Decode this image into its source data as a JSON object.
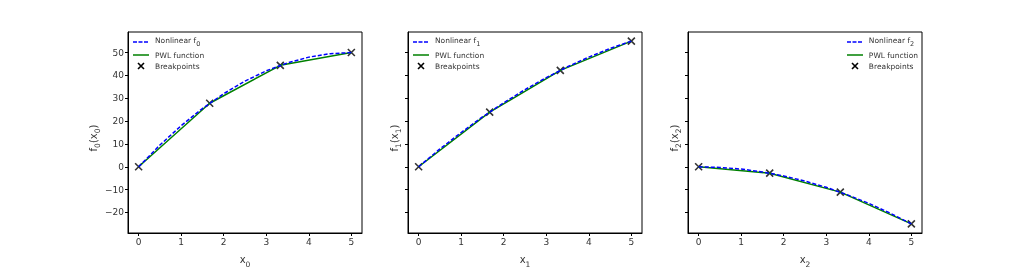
{
  "chart_data": [
    {
      "type": "line",
      "xlabel": "x$_{0}$",
      "ylabel": "f$_{0}$(x$_{0}$)",
      "xlim": [
        -0.25,
        5.25
      ],
      "xticks": [
        0,
        1,
        2,
        3,
        4,
        5
      ],
      "ylim": [
        -29,
        59
      ],
      "yticks": [
        -20,
        -10,
        0,
        10,
        20,
        30,
        40,
        50
      ],
      "grid": false,
      "legend": "top left",
      "series": [
        {
          "name": "Nonlinear f$_{0}$",
          "color": "#0000ff",
          "line_style": "dashed",
          "marker": "none",
          "x": [
            0,
            0.5,
            1,
            1.5,
            2,
            2.5,
            3,
            3.5,
            4,
            4.5,
            5
          ],
          "values": [
            0,
            9.5,
            18,
            25.5,
            32,
            37.5,
            42,
            45.5,
            48,
            49.5,
            50
          ]
        },
        {
          "name": "PWL function",
          "color": "#008000",
          "line_style": "solid",
          "marker": "none",
          "x": [
            0,
            1.67,
            3.33,
            5
          ],
          "values": [
            0,
            27.8,
            44.4,
            50
          ]
        },
        {
          "name": "Breakpoints",
          "type": "scatter",
          "color": "#000000",
          "marker": "cross",
          "x": [
            0,
            1.67,
            3.33,
            5
          ],
          "values": [
            0,
            27.8,
            44.4,
            50
          ]
        }
      ]
    },
    {
      "type": "line",
      "xlabel": "x$_{1}$",
      "ylabel": "f$_{1}$(x$_{1}$)",
      "xlim": [
        -0.25,
        5.25
      ],
      "xticks": [
        0,
        1,
        2,
        3,
        4,
        5
      ],
      "ylim": [
        -29,
        59
      ],
      "yticks": [
        -20,
        -10,
        0,
        10,
        20,
        30,
        40,
        50
      ],
      "tick_labels": "x",
      "grid": false,
      "legend": "top left",
      "series": [
        {
          "name": "Nonlinear f$_{1}$",
          "color": "#0000ff",
          "line_style": "dashed",
          "marker": "none",
          "x": [
            0,
            0.5,
            1,
            1.5,
            2,
            2.5,
            3,
            3.5,
            4,
            4.5,
            5
          ],
          "values": [
            0,
            7.8,
            15,
            21.8,
            28,
            33.8,
            39,
            43.8,
            48,
            51.8,
            55
          ]
        },
        {
          "name": "PWL function",
          "color": "#008000",
          "line_style": "solid",
          "marker": "none",
          "x": [
            0,
            1.67,
            3.33,
            5
          ],
          "values": [
            0,
            23.9,
            42.2,
            55
          ]
        },
        {
          "name": "Breakpoints",
          "type": "scatter",
          "color": "#000000",
          "marker": "cross",
          "x": [
            0,
            1.67,
            3.33,
            5
          ],
          "values": [
            0,
            23.9,
            42.2,
            55
          ]
        }
      ]
    },
    {
      "type": "line",
      "xlabel": "x$_{2}$",
      "ylabel": "f$_{2}$(x$_{2}$)",
      "xlim": [
        -0.25,
        5.25
      ],
      "xticks": [
        0,
        1,
        2,
        3,
        4,
        5
      ],
      "ylim": [
        -29,
        59
      ],
      "yticks": [
        -20,
        -10,
        0,
        10,
        20,
        30,
        40,
        50
      ],
      "tick_labels": "x",
      "grid": false,
      "legend": "top right",
      "series": [
        {
          "name": "Nonlinear f$_{2}$",
          "color": "#0000ff",
          "line_style": "dashed",
          "marker": "none",
          "x": [
            0,
            0.5,
            1,
            1.5,
            2,
            2.5,
            3,
            3.5,
            4,
            4.5,
            5
          ],
          "values": [
            0,
            -0.3,
            -1,
            -2.3,
            -4,
            -6.3,
            -9,
            -12.3,
            -16,
            -20.3,
            -25
          ]
        },
        {
          "name": "PWL function",
          "color": "#008000",
          "line_style": "solid",
          "marker": "none",
          "x": [
            0,
            1.67,
            3.33,
            5
          ],
          "values": [
            0,
            -2.8,
            -11.1,
            -25
          ]
        },
        {
          "name": "Breakpoints",
          "type": "scatter",
          "color": "#000000",
          "marker": "cross",
          "x": [
            0,
            1.67,
            3.33,
            5
          ],
          "values": [
            0,
            -2.8,
            -11.1,
            -25
          ]
        }
      ]
    }
  ]
}
